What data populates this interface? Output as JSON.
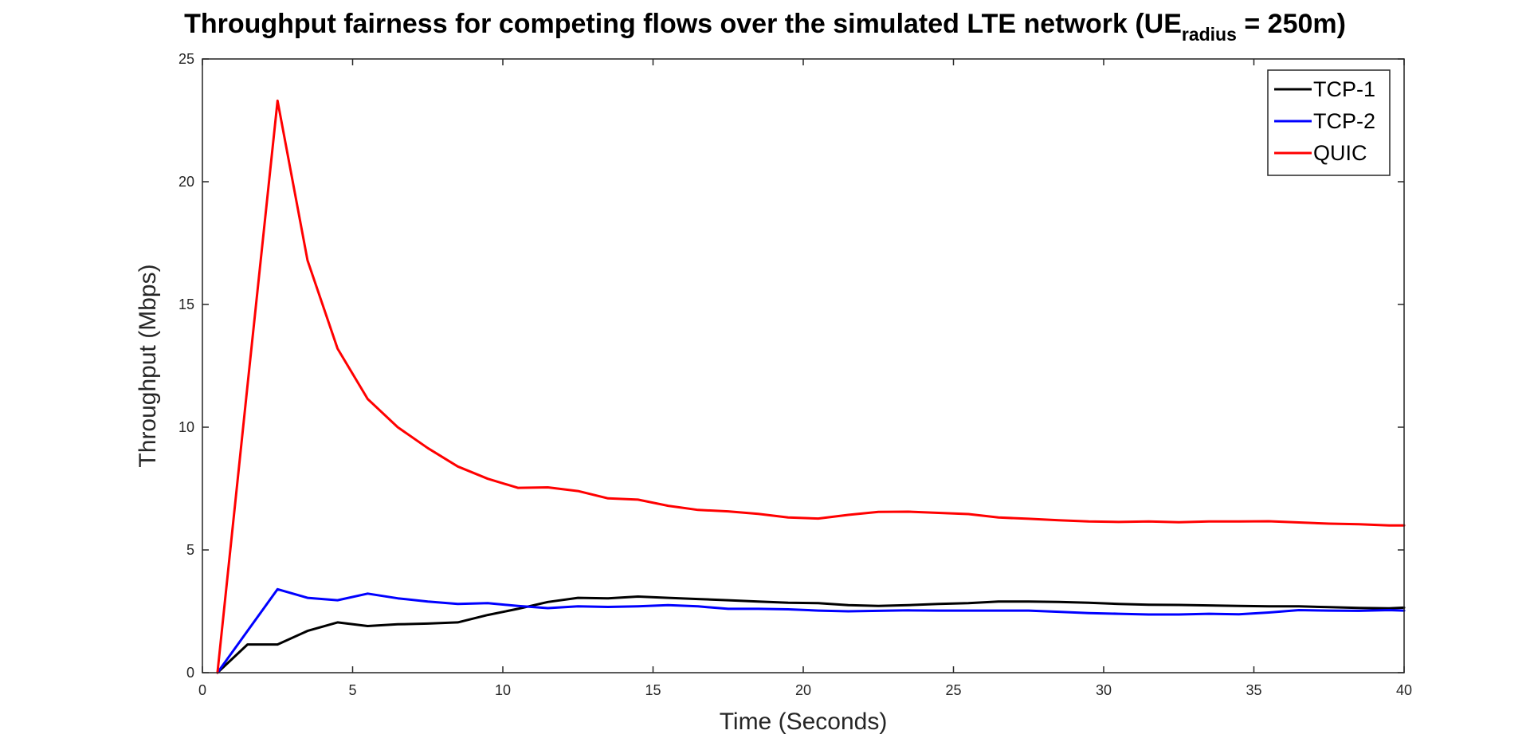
{
  "chart_data": {
    "type": "line",
    "title_main": "Throughput fairness for competing flows over the simulated LTE network (UE",
    "title_subscript": "radius",
    "title_end": " = 250m)",
    "xlabel": "Time (Seconds)",
    "ylabel": "Throughput (Mbps)",
    "xlim": [
      0,
      40
    ],
    "ylim": [
      0,
      25
    ],
    "xticks": [
      0,
      5,
      10,
      15,
      20,
      25,
      30,
      35,
      40
    ],
    "yticks": [
      0,
      5,
      10,
      15,
      20,
      25
    ],
    "grid": true,
    "legend_position": "top-right",
    "series": [
      {
        "name": "TCP-1",
        "color": "#000000",
        "x": [
          0.5,
          1.5,
          2.5,
          3.5,
          4.5,
          5.5,
          6.5,
          7.5,
          8.5,
          9.5,
          10.5,
          11.5,
          12.5,
          13.5,
          14.5,
          15.5,
          16.5,
          17.5,
          18.5,
          19.5,
          20.5,
          21.5,
          22.5,
          23.5,
          24.5,
          25.5,
          26.5,
          27.5,
          28.5,
          29.5,
          30.5,
          31.5,
          32.5,
          33.5,
          34.5,
          35.5,
          36.5,
          37.5,
          38.5,
          39.5,
          40
        ],
        "y": [
          0,
          1.15,
          1.15,
          1.7,
          2.05,
          1.9,
          1.97,
          2.0,
          2.05,
          2.35,
          2.6,
          2.88,
          3.05,
          3.03,
          3.1,
          3.05,
          3.0,
          2.95,
          2.9,
          2.85,
          2.83,
          2.75,
          2.72,
          2.75,
          2.8,
          2.83,
          2.9,
          2.9,
          2.88,
          2.85,
          2.8,
          2.77,
          2.76,
          2.74,
          2.72,
          2.7,
          2.7,
          2.67,
          2.64,
          2.62,
          2.65
        ]
      },
      {
        "name": "TCP-2",
        "color": "#0000ff",
        "x": [
          0.5,
          1.5,
          2.5,
          3.5,
          4.5,
          5.5,
          6.5,
          7.5,
          8.5,
          9.5,
          10.5,
          11.5,
          12.5,
          13.5,
          14.5,
          15.5,
          16.5,
          17.5,
          18.5,
          19.5,
          20.5,
          21.5,
          22.5,
          23.5,
          24.5,
          25.5,
          26.5,
          27.5,
          28.5,
          29.5,
          30.5,
          31.5,
          32.5,
          33.5,
          34.5,
          35.5,
          36.5,
          37.5,
          38.5,
          39.5,
          40
        ],
        "y": [
          0,
          1.7,
          3.4,
          3.05,
          2.95,
          3.22,
          3.03,
          2.9,
          2.8,
          2.83,
          2.72,
          2.63,
          2.7,
          2.68,
          2.7,
          2.75,
          2.7,
          2.6,
          2.6,
          2.58,
          2.53,
          2.5,
          2.52,
          2.54,
          2.53,
          2.53,
          2.53,
          2.53,
          2.48,
          2.43,
          2.4,
          2.37,
          2.37,
          2.4,
          2.38,
          2.45,
          2.55,
          2.53,
          2.52,
          2.55,
          2.53
        ]
      },
      {
        "name": "QUIC",
        "color": "#ff0000",
        "x": [
          0.5,
          1.5,
          2.5,
          3.5,
          4.5,
          5.5,
          6.5,
          7.5,
          8.5,
          9.5,
          10.5,
          11.5,
          12.5,
          13.5,
          14.5,
          15.5,
          16.5,
          17.5,
          18.5,
          19.5,
          20.5,
          21.5,
          22.5,
          23.5,
          24.5,
          25.5,
          26.5,
          27.5,
          28.5,
          29.5,
          30.5,
          31.5,
          32.5,
          33.5,
          34.5,
          35.5,
          36.5,
          37.5,
          38.5,
          39.5,
          40
        ],
        "y": [
          0,
          11.7,
          23.3,
          16.8,
          13.2,
          11.15,
          10.0,
          9.15,
          8.4,
          7.9,
          7.53,
          7.55,
          7.4,
          7.1,
          7.05,
          6.8,
          6.63,
          6.57,
          6.47,
          6.32,
          6.28,
          6.43,
          6.55,
          6.56,
          6.51,
          6.46,
          6.32,
          6.27,
          6.21,
          6.16,
          6.14,
          6.16,
          6.13,
          6.16,
          6.16,
          6.17,
          6.12,
          6.07,
          6.05,
          6.0,
          6.0
        ]
      }
    ]
  }
}
